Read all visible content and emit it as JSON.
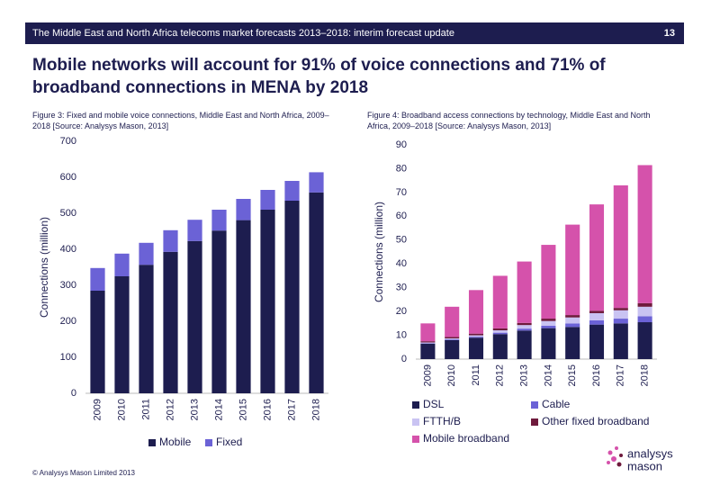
{
  "header": {
    "title": "The Middle East and North Africa telecoms market forecasts 2013–2018: interim forecast update",
    "page": "13"
  },
  "headline": "Mobile networks will account for 91% of voice connections and 71% of broadband connections in MENA by 2018",
  "chart_data": [
    {
      "type": "bar",
      "stacked": true,
      "caption": "Figure 3: Fixed and mobile voice connections, Middle East and North Africa, 2009–2018 [Source: Analysys Mason, 2013]",
      "ylabel": "Connections (million)",
      "categories": [
        "2009",
        "2010",
        "2011",
        "2012",
        "2013",
        "2014",
        "2015",
        "2016",
        "2017",
        "2018"
      ],
      "series": [
        {
          "name": "Mobile",
          "color": "#1d1d4f",
          "values": [
            285,
            325,
            357,
            393,
            423,
            452,
            481,
            510,
            535,
            558
          ]
        },
        {
          "name": "Fixed",
          "color": "#6b62d6",
          "values": [
            63,
            63,
            61,
            60,
            59,
            58,
            59,
            55,
            55,
            56
          ]
        }
      ],
      "ylim": [
        0,
        700
      ],
      "yticks": [
        0,
        100,
        200,
        300,
        400,
        500,
        600,
        700
      ],
      "grid": false,
      "legend": "bottom"
    },
    {
      "type": "bar",
      "stacked": true,
      "caption": "Figure 4: Broadband access connections by technology, Middle East and North Africa, 2009–2018 [Source: Analysys Mason, 2013]",
      "ylabel": "Connections (million)",
      "categories": [
        "2009",
        "2010",
        "2011",
        "2012",
        "2013",
        "2014",
        "2015",
        "2016",
        "2017",
        "2018"
      ],
      "series": [
        {
          "name": "DSL",
          "color": "#1d1d4f",
          "values": [
            6.5,
            8,
            9,
            10.5,
            12,
            13,
            13.5,
            14.5,
            15,
            15.5
          ]
        },
        {
          "name": "Cable",
          "color": "#6b62d6",
          "values": [
            0.2,
            0.3,
            0.4,
            0.6,
            0.8,
            1,
            1.5,
            1.8,
            2,
            2.5
          ]
        },
        {
          "name": "FTTH/B",
          "color": "#c9c3f2",
          "values": [
            0.3,
            0.4,
            0.6,
            1,
            1.5,
            2,
            2.5,
            3,
            3.5,
            4
          ]
        },
        {
          "name": "Other fixed broadband",
          "color": "#6e1a3c",
          "values": [
            0.5,
            0.6,
            0.7,
            0.8,
            0.9,
            1,
            1,
            1,
            1,
            1.5
          ]
        },
        {
          "name": "Mobile broadband",
          "color": "#d552ab",
          "values": [
            7.5,
            12.7,
            18.3,
            22.1,
            25.8,
            31,
            38,
            44.7,
            51.5,
            58
          ]
        }
      ],
      "ylim": [
        0,
        90
      ],
      "yticks": [
        0,
        10,
        20,
        30,
        40,
        50,
        60,
        70,
        80,
        90
      ],
      "grid": false,
      "legend": "bottom"
    }
  ],
  "footer": "© Analysys Mason Limited 2013",
  "logo": [
    "analysys",
    "mason"
  ]
}
